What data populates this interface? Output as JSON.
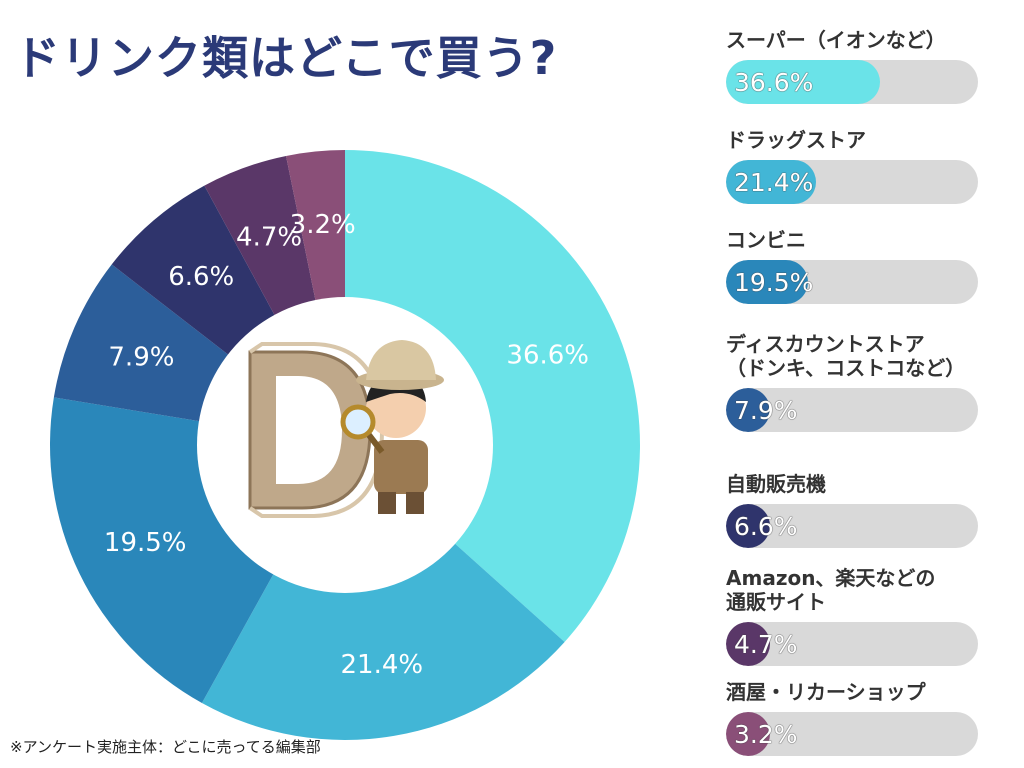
{
  "title": "ドリンク類はどこで買う?",
  "note": "※アンケート実施主体：どこに売ってる編集部",
  "center_image": {
    "icon": "explorer-character-with-magnifying-glass-and-letter-d"
  },
  "chart_data": {
    "type": "donut",
    "unit": "%",
    "categories": [
      "スーパー（イオンなど）",
      "ドラッグストア",
      "コンビニ",
      "ディスカウントストア\n（ドンキ、コストコなど）",
      "自動販売機",
      "Amazon、楽天などの\n通販サイト",
      "酒屋・リカーショップ"
    ],
    "values": [
      36.6,
      21.4,
      19.5,
      7.9,
      6.6,
      4.7,
      3.2
    ],
    "labels": [
      "36.6%",
      "21.4%",
      "19.5%",
      "7.9%",
      "6.6%",
      "4.7%",
      "3.2%"
    ],
    "colors": [
      "#6ae3e8",
      "#42b6d6",
      "#2a87ba",
      "#2c5e9a",
      "#2f346c",
      "#5a3768",
      "#8a4f78"
    ],
    "legend_placement": "right"
  }
}
